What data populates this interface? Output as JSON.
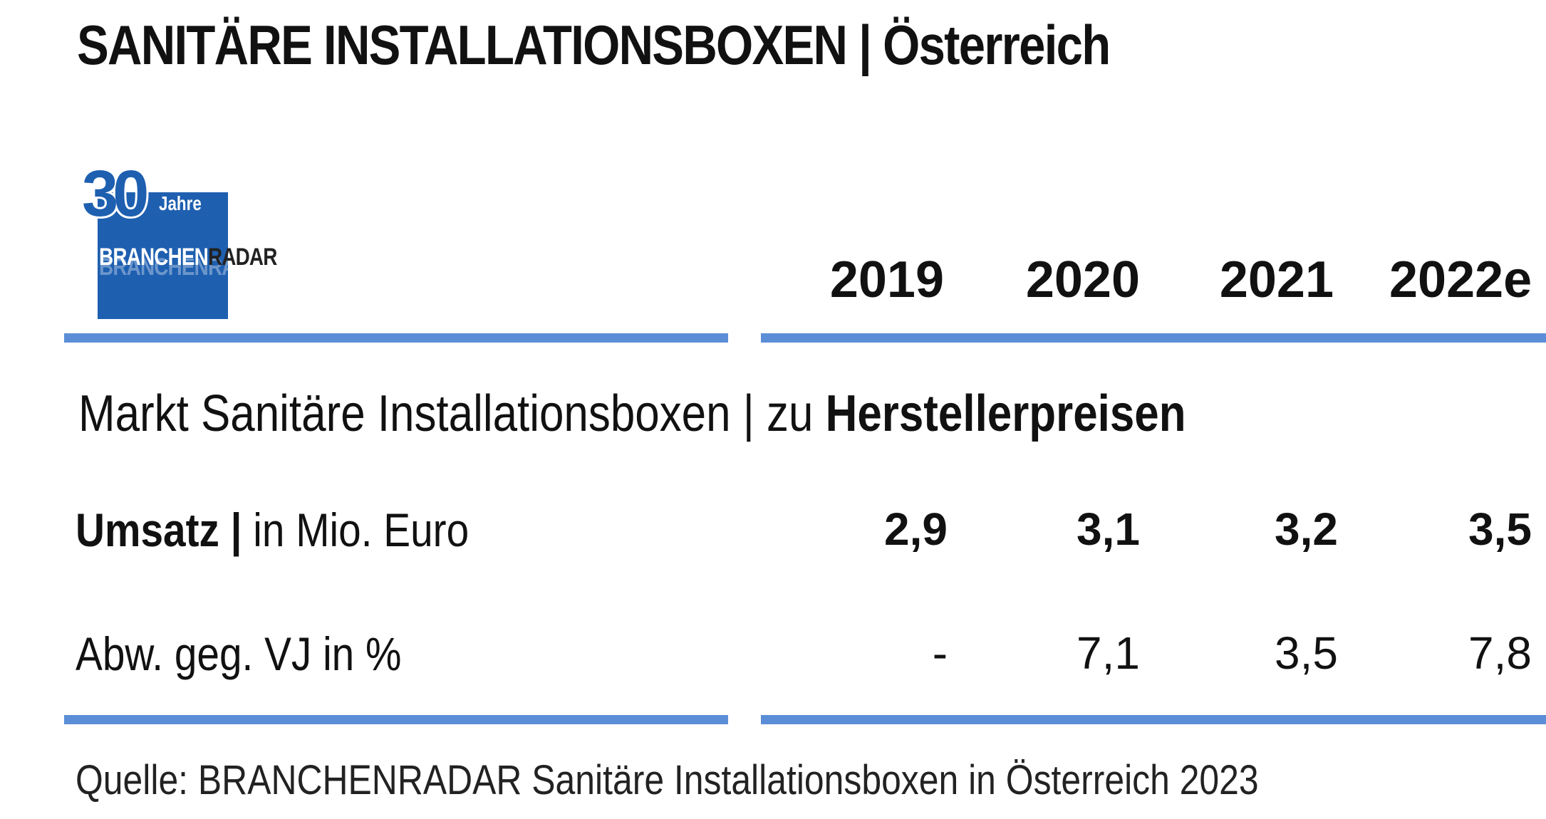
{
  "title": "SANITÄRE INSTALLATIONSBOXEN | Österreich",
  "logo": {
    "number": "30",
    "jahre": "Jahre",
    "brand_left": "BRANCHEN",
    "brand_right": "RADAR"
  },
  "years": [
    "2019",
    "2020",
    "2021",
    "2022e"
  ],
  "section": {
    "prefix": "Markt Sanitäre Installationsboxen | zu ",
    "bold": "Herstellerpreisen"
  },
  "rows": [
    {
      "label_bold": "Umsatz |",
      "label_rest": " in Mio. Euro",
      "values": [
        "2,9",
        "3,1",
        "3,2",
        "3,5"
      ]
    },
    {
      "label_bold": "",
      "label_rest": "Abw. geg. VJ in %",
      "values": [
        "-",
        "7,1",
        "3,5",
        "7,8"
      ]
    }
  ],
  "source": "Quelle: BRANCHENRADAR Sanitäre Installationsboxen in Österreich 2023",
  "colors": {
    "rule": "#5b8ed6",
    "logo": "#1e5fb0"
  },
  "chart_data": {
    "type": "table",
    "title": "SANITÄRE INSTALLATIONSBOXEN | Österreich",
    "subtitle": "Markt Sanitäre Installationsboxen | zu Herstellerpreisen",
    "categories": [
      "2019",
      "2020",
      "2021",
      "2022e"
    ],
    "series": [
      {
        "name": "Umsatz | in Mio. Euro",
        "values": [
          2.9,
          3.1,
          3.2,
          3.5
        ]
      },
      {
        "name": "Abw. geg. VJ in %",
        "values": [
          null,
          7.1,
          3.5,
          7.8
        ]
      }
    ]
  }
}
